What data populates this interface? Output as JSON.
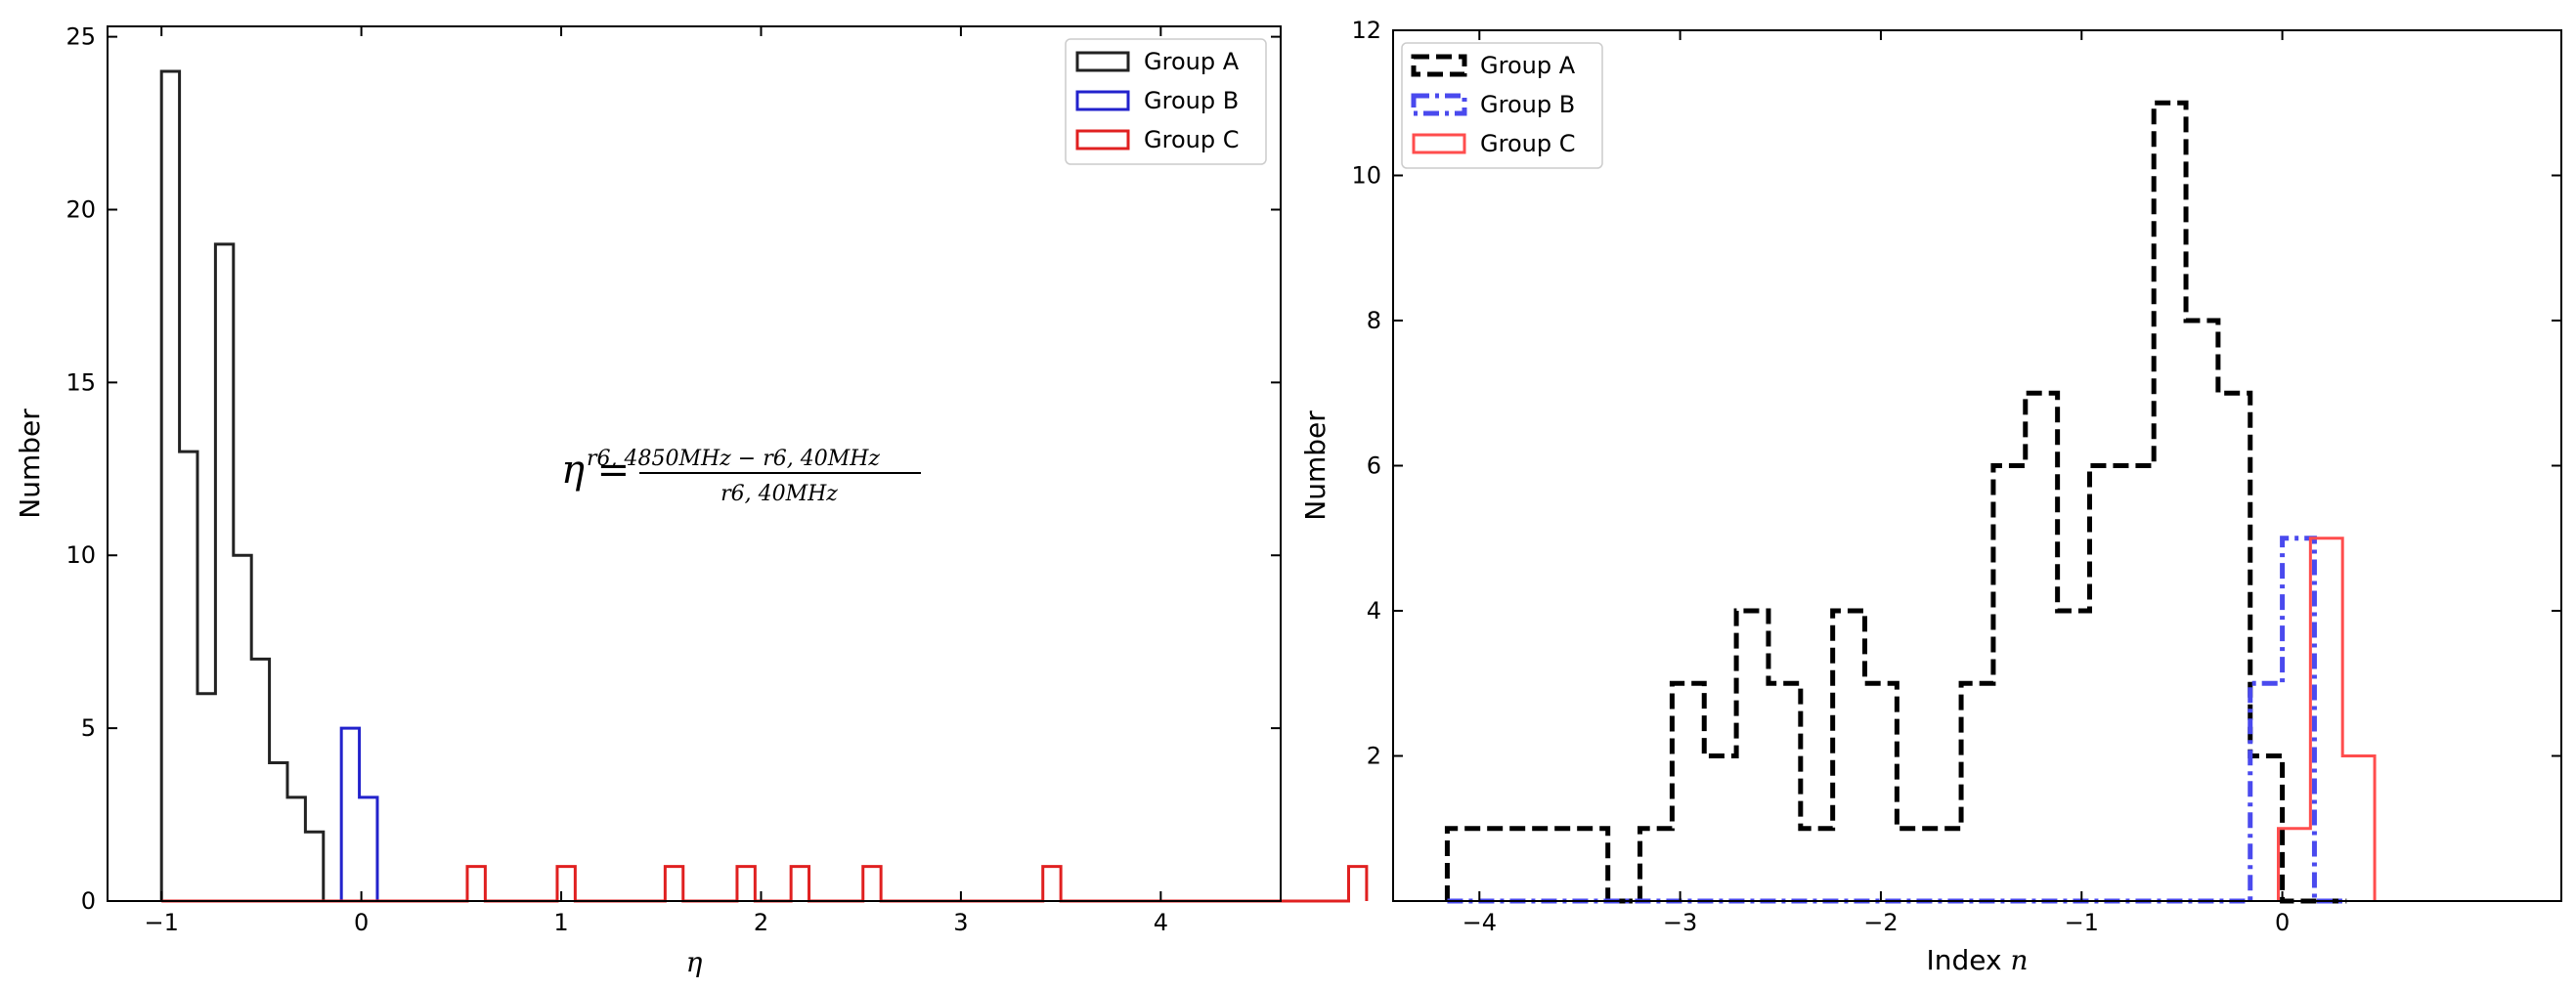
{
  "chart_data": [
    {
      "type": "histogram",
      "title": "",
      "xlabel": "η",
      "ylabel": "Number",
      "xlim": [
        -1.27,
        4.6
      ],
      "ylim": [
        0,
        25.3
      ],
      "xticks": [
        -1,
        0,
        1,
        2,
        3,
        4
      ],
      "xtick_labels": [
        "−1",
        "0",
        "1",
        "2",
        "3",
        "4"
      ],
      "yticks": [
        0,
        5,
        10,
        15,
        20,
        25
      ],
      "ytick_labels": [
        "0",
        "5",
        "10",
        "15",
        "20",
        "25"
      ],
      "legend_position": "upper right",
      "annotation": {
        "lhs": "η =",
        "numerator": "r6, 4850MHz − r6, 40MHz",
        "denominator": "r6, 40MHz"
      },
      "series": [
        {
          "name": "Group A",
          "color": "#222222",
          "style": "solid",
          "x_start": -1.0,
          "bin_width": 0.09,
          "values": [
            24,
            13,
            6,
            19,
            10,
            7,
            4,
            3,
            2
          ]
        },
        {
          "name": "Group B",
          "color": "#2222cc",
          "style": "solid",
          "x_start": -0.1,
          "bin_width": 0.09,
          "values": [
            5,
            3
          ]
        },
        {
          "name": "Group C",
          "color": "#e02020",
          "style": "solid",
          "x_start": -1.0,
          "bin_width": 0.09,
          "values": [
            0,
            0,
            0,
            0,
            0,
            0,
            0,
            0,
            0,
            0,
            0,
            0,
            0,
            0,
            0,
            0,
            0,
            1,
            0,
            0,
            0,
            0,
            1,
            0,
            0,
            0,
            0,
            0,
            1,
            0,
            0,
            0,
            1,
            0,
            0,
            1,
            0,
            0,
            0,
            1,
            0,
            0,
            0,
            0,
            0,
            0,
            0,
            0,
            0,
            1,
            0,
            0,
            0,
            0,
            0,
            0,
            0,
            0,
            0,
            0,
            0,
            0,
            0,
            0,
            0,
            0,
            1
          ]
        }
      ]
    },
    {
      "type": "histogram",
      "title": "",
      "xlabel": "Index n",
      "ylabel": "Number",
      "xlim": [
        -4.43,
        1.39
      ],
      "ylim": [
        0,
        12
      ],
      "xticks": [
        -4,
        -3,
        -2,
        -1,
        0
      ],
      "xtick_labels": [
        "−4",
        "−3",
        "−2",
        "−1",
        "0"
      ],
      "yticks": [
        2,
        4,
        6,
        8,
        10,
        12
      ],
      "ytick_labels": [
        "2",
        "4",
        "6",
        "8",
        "10",
        "12"
      ],
      "legend_position": "upper left",
      "series": [
        {
          "name": "Group A",
          "color": "#000000",
          "style": "dashed",
          "x_start": -4.16,
          "bin_width": 0.16,
          "values": [
            1,
            1,
            1,
            1,
            1,
            0,
            1,
            3,
            2,
            4,
            3,
            1,
            4,
            3,
            1,
            1,
            3,
            6,
            7,
            4,
            6,
            6,
            11,
            8,
            7,
            2,
            0,
            0
          ]
        },
        {
          "name": "Group B",
          "color": "#4a4aee",
          "style": "dashdot",
          "x_start": -4.16,
          "bin_width": 0.16,
          "values": [
            0,
            0,
            0,
            0,
            0,
            0,
            0,
            0,
            0,
            0,
            0,
            0,
            0,
            0,
            0,
            0,
            0,
            0,
            0,
            0,
            0,
            0,
            0,
            0,
            0,
            3,
            5,
            0
          ]
        },
        {
          "name": "Group C",
          "color": "#ff4d4d",
          "style": "solid",
          "x_start": -0.02,
          "bin_width": 0.16,
          "values": [
            1,
            5,
            2
          ]
        }
      ]
    }
  ]
}
